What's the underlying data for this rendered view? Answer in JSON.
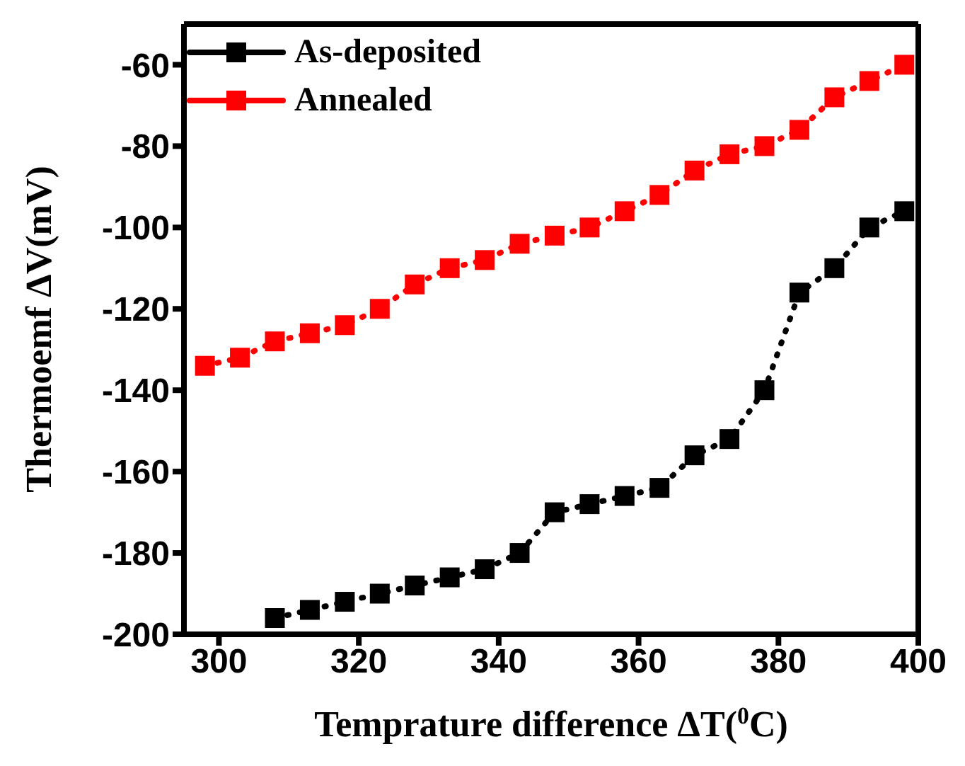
{
  "chart_data": {
    "type": "line",
    "xlabel": "Temprature difference ΔT($^{0}$C)",
    "ylabel": "Thermoemf ΔV(mV)",
    "xlim": [
      295,
      400
    ],
    "xticks": [
      300,
      320,
      340,
      360,
      380,
      400
    ],
    "ylim": [
      -200,
      -50
    ],
    "yticks": [
      -200,
      -180,
      -160,
      -140,
      -120,
      -100,
      -80,
      -60
    ],
    "grid": false,
    "legend": "top left",
    "marker": "square",
    "line_style": "dotted",
    "series": [
      {
        "name": "As-deposited",
        "color": "#000000",
        "x": [
          308,
          313,
          318,
          323,
          328,
          333,
          338,
          343,
          348,
          353,
          358,
          363,
          368,
          373,
          378,
          383,
          388,
          393,
          398
        ],
        "values": [
          -196,
          -194,
          -192,
          -190,
          -188,
          -186,
          -184,
          -180,
          -170,
          -168,
          -166,
          -164,
          -156,
          -152,
          -140,
          -116,
          -110,
          -100,
          -96
        ]
      },
      {
        "name": "Annealed",
        "color": "#ff0000",
        "x": [
          298,
          303,
          308,
          313,
          318,
          323,
          328,
          333,
          338,
          343,
          348,
          353,
          358,
          363,
          368,
          373,
          378,
          383,
          388,
          393,
          398
        ],
        "values": [
          -134,
          -132,
          -128,
          -126,
          -124,
          -120,
          -114,
          -110,
          -108,
          -104,
          -102,
          -100,
          -96,
          -92,
          -86,
          -82,
          -80,
          -76,
          -68,
          -64,
          -60
        ]
      }
    ]
  }
}
